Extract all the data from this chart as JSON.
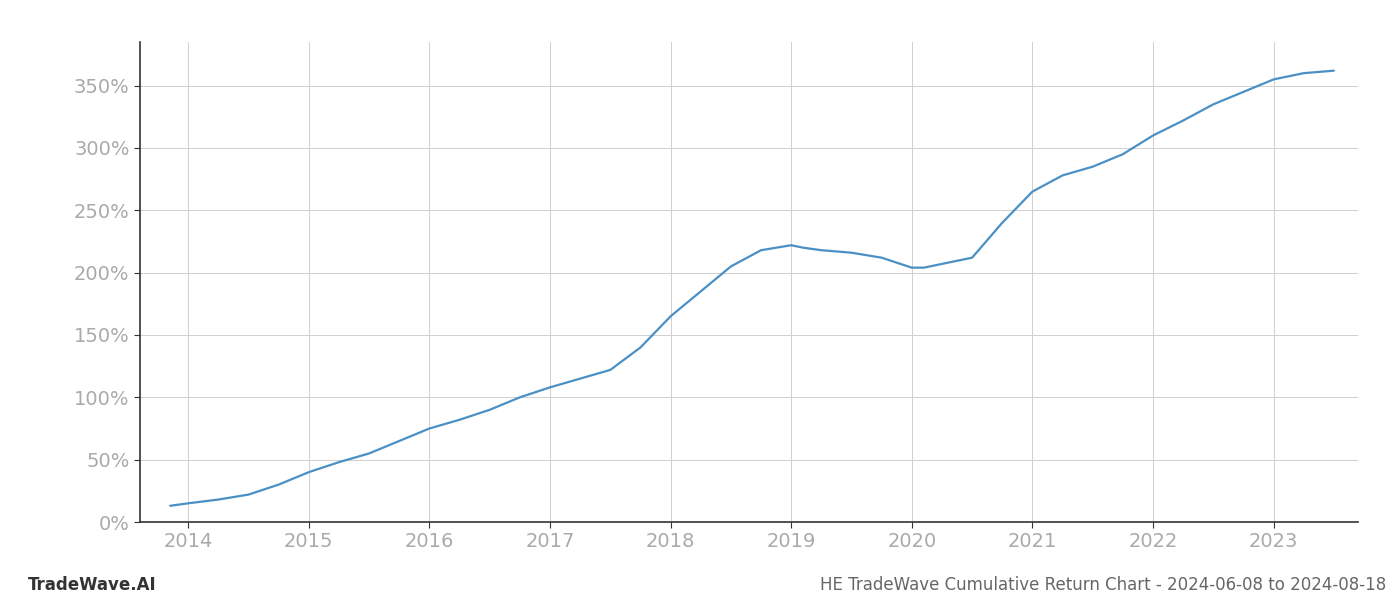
{
  "title": "HE TradeWave Cumulative Return Chart - 2024-06-08 to 2024-08-18",
  "watermark": "TradeWave.AI",
  "line_color": "#4a90c4",
  "background_color": "#ffffff",
  "grid_color": "#d0d0d0",
  "x_years": [
    2013.85,
    2014.0,
    2014.25,
    2014.5,
    2014.75,
    2015.0,
    2015.25,
    2015.5,
    2015.75,
    2016.0,
    2016.25,
    2016.5,
    2016.75,
    2017.0,
    2017.25,
    2017.5,
    2017.75,
    2018.0,
    2018.25,
    2018.5,
    2018.75,
    2019.0,
    2019.1,
    2019.25,
    2019.5,
    2019.75,
    2020.0,
    2020.1,
    2020.5,
    2020.75,
    2021.0,
    2021.25,
    2021.5,
    2021.75,
    2022.0,
    2022.25,
    2022.5,
    2022.75,
    2023.0,
    2023.25,
    2023.5
  ],
  "y_values": [
    13,
    15,
    18,
    22,
    30,
    40,
    48,
    55,
    65,
    75,
    82,
    90,
    100,
    108,
    115,
    122,
    140,
    165,
    185,
    205,
    218,
    222,
    220,
    218,
    216,
    212,
    204,
    204,
    212,
    240,
    265,
    278,
    285,
    295,
    310,
    322,
    335,
    345,
    355,
    360,
    362
  ],
  "xlim": [
    2013.6,
    2023.7
  ],
  "ylim": [
    0,
    385
  ],
  "yticks": [
    0,
    50,
    100,
    150,
    200,
    250,
    300,
    350
  ],
  "xticks": [
    2014,
    2015,
    2016,
    2017,
    2018,
    2019,
    2020,
    2021,
    2022,
    2023
  ],
  "tick_label_color": "#aaaaaa",
  "title_color": "#666666",
  "watermark_color": "#333333",
  "line_width": 1.6,
  "spine_color": "#333333",
  "figsize": [
    14.0,
    6.0
  ],
  "dpi": 100
}
